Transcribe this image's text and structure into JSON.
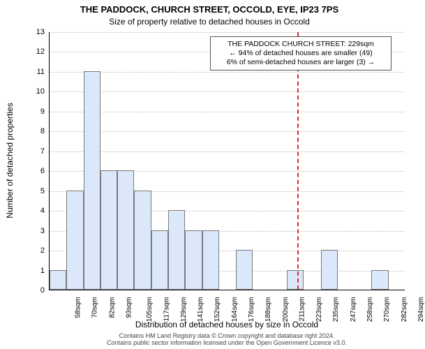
{
  "header": {
    "title_main": "THE PADDOCK, CHURCH STREET, OCCOLD, EYE, IP23 7PS",
    "title_sub": "Size of property relative to detached houses in Occold"
  },
  "chart": {
    "type": "histogram",
    "ylabel": "Number of detached properties",
    "xlabel": "Distribution of detached houses by size in Occold",
    "ylim": [
      0,
      13
    ],
    "ytick_step": 1,
    "xticks": [
      "58sqm",
      "70sqm",
      "82sqm",
      "93sqm",
      "105sqm",
      "117sqm",
      "129sqm",
      "141sqm",
      "152sqm",
      "164sqm",
      "176sqm",
      "188sqm",
      "200sqm",
      "211sqm",
      "223sqm",
      "235sqm",
      "247sqm",
      "258sqm",
      "270sqm",
      "282sqm",
      "294sqm"
    ],
    "bars": [
      1,
      5,
      11,
      6,
      6,
      5,
      3,
      4,
      3,
      3,
      0,
      2,
      0,
      0,
      1,
      0,
      2,
      0,
      0,
      1,
      0
    ],
    "bar_fill": "#dbe8fa",
    "bar_stroke": "#7a7a7a",
    "background_color": "#ffffff",
    "grid_color": "#bfbfbf",
    "grid_style": "dotted",
    "axis_color": "#000000",
    "ref_line": {
      "x_index": 14.6,
      "color": "#d93030"
    },
    "annotation": {
      "line1": "THE PADDOCK CHURCH STREET: 229sqm",
      "line2": "← 94% of detached houses are smaller (49)",
      "line3": "6% of semi-detached houses are larger (3) →",
      "border_color": "#555555",
      "background": "#ffffff",
      "fontsize": 10.5
    }
  },
  "footer": {
    "line1": "Contains HM Land Registry data © Crown copyright and database right 2024.",
    "line2": "Contains public sector information licensed under the Open Government Licence v3.0."
  }
}
